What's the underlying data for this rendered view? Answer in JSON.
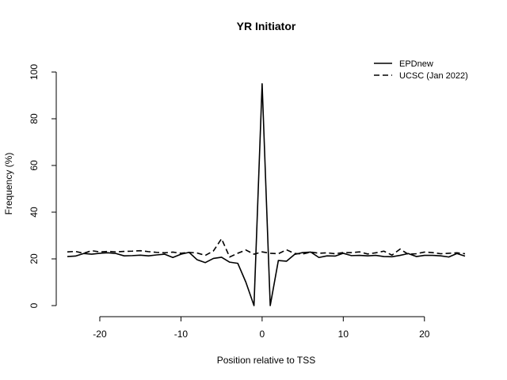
{
  "chart_data": {
    "type": "line",
    "title": "YR Initiator",
    "xlabel": "Position relative to TSS",
    "ylabel": "Frequency (%)",
    "xlim": [
      -24,
      25
    ],
    "ylim": [
      0,
      100
    ],
    "xticks": [
      -20,
      -10,
      0,
      10,
      20
    ],
    "yticks": [
      0,
      20,
      40,
      60,
      80,
      100
    ],
    "legend_position": "top-right",
    "grid": false,
    "x": [
      -24,
      -23,
      -22,
      -21,
      -20,
      -19,
      -18,
      -17,
      -16,
      -15,
      -14,
      -13,
      -12,
      -11,
      -10,
      -9,
      -8,
      -7,
      -6,
      -5,
      -4,
      -3,
      -2,
      -1,
      0,
      1,
      2,
      3,
      4,
      5,
      6,
      7,
      8,
      9,
      10,
      11,
      12,
      13,
      14,
      15,
      16,
      17,
      18,
      19,
      20,
      21,
      22,
      23,
      24,
      25
    ],
    "series": [
      {
        "name": "EPDnew",
        "dash": "solid",
        "values": [
          21.0,
          21.2,
          22.3,
          22.0,
          22.4,
          22.6,
          22.3,
          21.3,
          21.4,
          21.6,
          21.3,
          21.7,
          22.0,
          20.6,
          22.0,
          22.8,
          19.6,
          18.4,
          20.2,
          20.7,
          18.6,
          18.1,
          10.0,
          0.0,
          95.0,
          0.0,
          19.3,
          19.0,
          21.9,
          22.7,
          22.9,
          20.6,
          21.3,
          21.2,
          22.4,
          21.4,
          21.5,
          21.3,
          21.5,
          21.0,
          20.9,
          21.5,
          22.3,
          21.0,
          21.5,
          21.5,
          21.3,
          20.8,
          22.3,
          21.2
        ]
      },
      {
        "name": "UCSC (Jan 2022)",
        "dash": "dashed",
        "values": [
          23.0,
          23.2,
          22.4,
          23.5,
          23.0,
          23.2,
          23.0,
          23.2,
          23.3,
          23.5,
          23.1,
          22.8,
          22.6,
          22.9,
          22.4,
          22.8,
          22.5,
          21.5,
          23.4,
          28.6,
          20.8,
          22.4,
          23.8,
          22.0,
          23.0,
          22.4,
          22.2,
          23.9,
          22.3,
          22.1,
          22.9,
          22.4,
          22.6,
          22.2,
          22.7,
          22.7,
          23.0,
          22.1,
          22.6,
          23.3,
          21.6,
          24.2,
          22.0,
          22.2,
          22.9,
          22.7,
          22.2,
          22.4,
          22.6,
          22.2
        ]
      }
    ]
  }
}
